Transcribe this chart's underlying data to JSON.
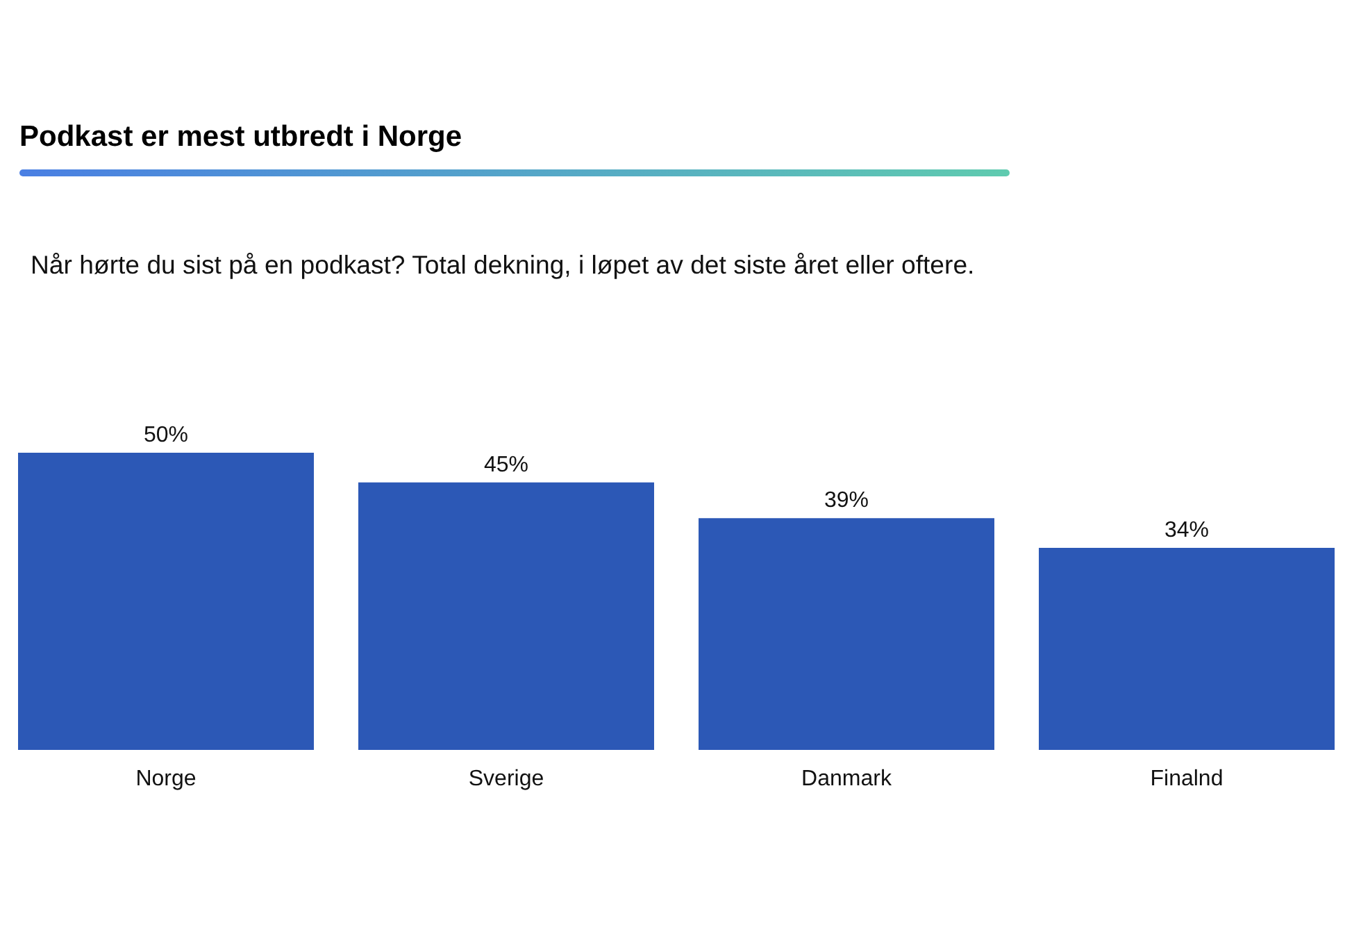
{
  "chart_data": {
    "type": "bar",
    "title": "Podkast er mest utbredt i Norge",
    "subtitle": "Når hørte du sist på en podkast? Total dekning, i løpet av det siste året eller oftere.",
    "categories": [
      "Norge",
      "Sverige",
      "Danmark",
      "Finalnd"
    ],
    "values": [
      50,
      45,
      39,
      34
    ],
    "color": "#2c58b6",
    "value_labels": [
      "50%",
      "45%",
      "39%",
      "34%"
    ],
    "tick_labels": "x"
  }
}
